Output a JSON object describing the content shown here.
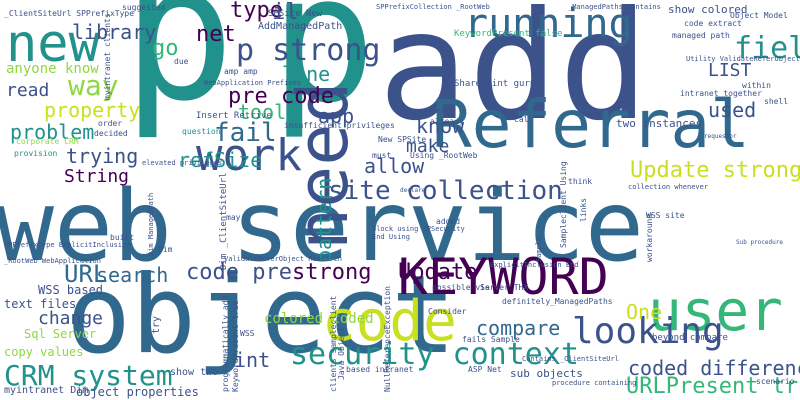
{
  "palette": {
    "dark_purple": "#440154",
    "indigo": "#3b528b",
    "blue": "#31688e",
    "teal": "#21918c",
    "green": "#35b779",
    "lime": "#90d743",
    "yellow": "#c8e020"
  },
  "words": [
    {
      "text": "web service",
      "color": "#31688e"
    },
    {
      "text": "object",
      "color": "#31688e"
    },
    {
      "text": "p",
      "color": "#21918c"
    },
    {
      "text": "p",
      "color": "#21918c"
    },
    {
      "text": "add",
      "color": "#3b528b"
    },
    {
      "text": "Referral",
      "color": "#31688e"
    },
    {
      "text": "KEYWORD",
      "color": "#440154"
    },
    {
      "text": "code",
      "color": "#c8e020"
    },
    {
      "text": "user",
      "color": "#35b779"
    },
    {
      "text": "new",
      "color": "#21918c"
    },
    {
      "text": "work",
      "color": "#3b528b"
    },
    {
      "text": "running",
      "color": "#31688e"
    },
    {
      "text": "security context",
      "color": "#21918c"
    },
    {
      "text": "site collection",
      "color": "#3b528b"
    },
    {
      "text": "looking",
      "color": "#3b528b"
    },
    {
      "text": "p strong",
      "color": "#3b528b"
    },
    {
      "text": "field",
      "color": "#21918c"
    },
    {
      "text": "CRM system",
      "color": "#21918c"
    },
    {
      "text": "Update strong",
      "color": "#c8e020"
    },
    {
      "text": "URLPresent true",
      "color": "#35b779"
    },
    {
      "text": "coded differences",
      "color": "#3b528b"
    },
    {
      "text": "way",
      "color": "#90d743"
    },
    {
      "text": "fail",
      "color": "#31688e"
    },
    {
      "text": "need",
      "color": "#3b528b"
    },
    {
      "text": "strong",
      "color": "#440154"
    },
    {
      "text": "Update",
      "color": "#440154"
    },
    {
      "text": "compare",
      "color": "#31688e"
    },
    {
      "text": "URL",
      "color": "#31688e"
    },
    {
      "text": "search",
      "color": "#31688e"
    },
    {
      "text": "problem",
      "color": "#21918c"
    },
    {
      "text": "trying",
      "color": "#3b528b"
    },
    {
      "text": "String",
      "color": "#440154"
    },
    {
      "text": "property",
      "color": "#c8e020"
    },
    {
      "text": "library",
      "color": "#3b528b"
    },
    {
      "text": "type",
      "color": "#440154"
    },
    {
      "text": "il",
      "color": "#3b528b"
    },
    {
      "text": "net",
      "color": "#440154"
    },
    {
      "text": "go",
      "color": "#35b779"
    },
    {
      "text": "pre code",
      "color": "#440154"
    },
    {
      "text": "tool",
      "color": "#35b779"
    },
    {
      "text": "app",
      "color": "#3b528b"
    },
    {
      "text": "line",
      "color": "#21918c"
    },
    {
      "text": "know",
      "color": "#3b528b"
    },
    {
      "text": "make",
      "color": "#3b528b"
    },
    {
      "text": "allow",
      "color": "#3b528b"
    },
    {
      "text": "read",
      "color": "#3b528b"
    },
    {
      "text": "refSize",
      "color": "#21918c"
    },
    {
      "text": "pattern",
      "color": "#21918c"
    },
    {
      "text": "code pre",
      "color": "#3b528b"
    },
    {
      "text": "change",
      "color": "#3b528b"
    },
    {
      "text": "One",
      "color": "#c8e020"
    },
    {
      "text": "used",
      "color": "#3b528b"
    },
    {
      "text": "LIST",
      "color": "#3b528b"
    },
    {
      "text": "int",
      "color": "#3b528b"
    },
    {
      "text": "anyone know",
      "color": "#90d743"
    },
    {
      "text": "copy values",
      "color": "#90d743"
    },
    {
      "text": "colored coded",
      "color": "#90d743"
    },
    {
      "text": "text files",
      "color": "#3b528b"
    },
    {
      "text": "WSS based",
      "color": "#3b528b"
    },
    {
      "text": "Sql Server",
      "color": "#90d743"
    },
    {
      "text": "object properties",
      "color": "#3b528b"
    },
    {
      "text": "myintranet Dim",
      "color": "#3b528b"
    },
    {
      "text": "show two",
      "color": "#3b528b"
    },
    {
      "text": "sub objects",
      "color": "#3b528b"
    },
    {
      "text": "two instances",
      "color": "#3b528b"
    },
    {
      "text": "show colored",
      "color": "#3b528b"
    },
    {
      "text": "AddManagedPath",
      "color": "#3b528b"
    },
    {
      "text": "SPSite New",
      "color": "#3b528b"
    },
    {
      "text": "SharePoint guru",
      "color": "#3b528b"
    },
    {
      "text": "Insert Retrive",
      "color": "#3b528b"
    },
    {
      "text": "amp amp",
      "color": "#3b528b"
    },
    {
      "text": "question",
      "color": "#21918c"
    },
    {
      "text": "suggested",
      "color": "#3b528b"
    },
    {
      "text": "corporate CRM",
      "color": "#90d743"
    },
    {
      "text": "provision",
      "color": "#21918c"
    },
    {
      "text": "decided",
      "color": "#3b528b"
    },
    {
      "text": "order",
      "color": "#3b528b"
    },
    {
      "text": "KeywordPresent false",
      "color": "#35b779"
    },
    {
      "text": "Object Model",
      "color": "#3b528b"
    },
    {
      "text": "code extract",
      "color": "#3b528b"
    },
    {
      "text": "managed path",
      "color": "#3b528b"
    },
    {
      "text": "intranet together",
      "color": "#3b528b"
    },
    {
      "text": "within",
      "color": "#3b528b"
    },
    {
      "text": "shell",
      "color": "#3b528b"
    },
    {
      "text": "beyond compare",
      "color": "#3b528b"
    },
    {
      "text": "possible via",
      "color": "#3b528b"
    },
    {
      "text": "Server THX",
      "color": "#3b528b"
    },
    {
      "text": "definitely",
      "color": "#3b528b"
    },
    {
      "text": "ASP Net",
      "color": "#3b528b"
    },
    {
      "text": "fails Sample",
      "color": "#3b528b"
    },
    {
      "text": "based intranet",
      "color": "#3b528b"
    },
    {
      "text": "Consider",
      "color": "#3b528b"
    },
    {
      "text": "_ManagedPaths",
      "color": "#3b528b"
    },
    {
      "text": "WSS site",
      "color": "#3b528b"
    },
    {
      "text": "workaround",
      "color": "#3b528b"
    },
    {
      "text": "scenario",
      "color": "#3b528b"
    },
    {
      "text": "try",
      "color": "#3b528b"
    },
    {
      "text": "WSS",
      "color": "#3b528b"
    },
    {
      "text": "built",
      "color": "#3b528b"
    },
    {
      "text": "may",
      "color": "#3b528b"
    },
    {
      "text": "think",
      "color": "#3b528b"
    },
    {
      "text": "due",
      "color": "#3b528b"
    },
    {
      "text": "must",
      "color": "#3b528b"
    },
    {
      "text": "call",
      "color": "#3b528b"
    },
    {
      "text": "Dim",
      "color": "#3b528b"
    },
    {
      "text": "added",
      "color": "#3b528b"
    },
    {
      "text": "links",
      "color": "#3b528b"
    },
    {
      "text": "already",
      "color": "#3b528b"
    },
    {
      "text": "Using _RootWeb",
      "color": "#3b528b"
    },
    {
      "text": "New SPSite",
      "color": "#3b528b"
    },
    {
      "text": "insufficient privileges",
      "color": "#3b528b"
    },
    {
      "text": "elevated privileges",
      "color": "#3b528b"
    },
    {
      "text": "_ClientSiteUrl SPPrefixType",
      "color": "#3b528b"
    },
    {
      "text": "Dim _ClientSiteUrl",
      "color": "#3b528b"
    },
    {
      "text": "clients sampleclient",
      "color": "#3b528b"
    },
    {
      "text": "Java Object",
      "color": "#3b528b"
    },
    {
      "text": "myintranet clients",
      "color": "#3b528b"
    },
    {
      "text": "NullReferenceException",
      "color": "#3b528b"
    },
    {
      "text": "programmatically add",
      "color": "#3b528b"
    },
    {
      "text": "KeywordPresent true",
      "color": "#3b528b"
    },
    {
      "text": "Sampleclient Using",
      "color": "#3b528b"
    },
    {
      "text": "WebApplication Prefixes",
      "color": "#3b528b"
    },
    {
      "text": "ValidateReferObject Research",
      "color": "#3b528b"
    },
    {
      "text": "Dim ManagedPath",
      "color": "#3b528b"
    },
    {
      "text": "member",
      "color": "#3b528b"
    },
    {
      "text": "_RootWeb WebApplication",
      "color": "#3b528b"
    },
    {
      "text": "SPPrefixType ExplicitInclusion",
      "color": "#3b528b"
    },
    {
      "text": "ExplicitInclusion End",
      "color": "#3b528b"
    },
    {
      "text": "SPPrefixCollection _RootWeb",
      "color": "#3b528b"
    },
    {
      "text": "_ManagedPaths Contains",
      "color": "#3b528b"
    },
    {
      "text": "Utility ValidateReferObject",
      "color": "#3b528b"
    },
    {
      "text": "Contains _ClientSiteUrl",
      "color": "#3b528b"
    },
    {
      "text": "procedure containing",
      "color": "#3b528b"
    },
    {
      "text": "collection whenever",
      "color": "#3b528b"
    },
    {
      "text": "Sub procedure",
      "color": "#3b528b"
    },
    {
      "text": "block using SPSecurity",
      "color": "#3b528b"
    },
    {
      "text": "End Using",
      "color": "#3b528b"
    },
    {
      "text": "Sample",
      "color": "#3b528b"
    },
    {
      "text": "requestor",
      "color": "#3b528b"
    },
    {
      "text": "declare",
      "color": "#3b528b"
    }
  ]
}
